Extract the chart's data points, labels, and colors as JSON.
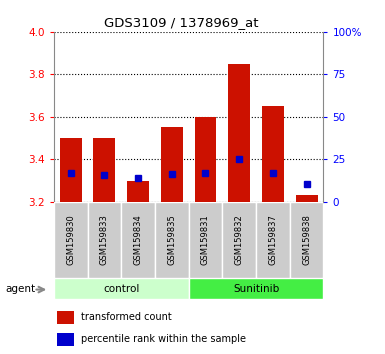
{
  "title": "GDS3109 / 1378969_at",
  "samples": [
    "GSM159830",
    "GSM159833",
    "GSM159834",
    "GSM159835",
    "GSM159831",
    "GSM159832",
    "GSM159837",
    "GSM159838"
  ],
  "groups": [
    "control",
    "control",
    "control",
    "control",
    "Sunitinib",
    "Sunitinib",
    "Sunitinib",
    "Sunitinib"
  ],
  "red_values": [
    3.5,
    3.5,
    3.3,
    3.55,
    3.6,
    3.85,
    3.65,
    3.23
  ],
  "blue_values": [
    3.335,
    3.325,
    3.31,
    3.33,
    3.335,
    3.4,
    3.335,
    3.285
  ],
  "baseline": 3.2,
  "ylim_left": [
    3.2,
    4.0
  ],
  "ylim_right": [
    0,
    100
  ],
  "yticks_left": [
    3.2,
    3.4,
    3.6,
    3.8,
    4.0
  ],
  "yticks_right": [
    0,
    25,
    50,
    75,
    100
  ],
  "ytick_labels_right": [
    "0",
    "25",
    "50",
    "75",
    "100%"
  ],
  "bar_color": "#cc1100",
  "blue_color": "#0000cc",
  "control_color_light": "#ccffcc",
  "sunitinib_color_bright": "#44ee44",
  "sample_box_color": "#cccccc",
  "bar_width": 0.65,
  "agent_label": "agent",
  "legend_red": "transformed count",
  "legend_blue": "percentile rank within the sample"
}
